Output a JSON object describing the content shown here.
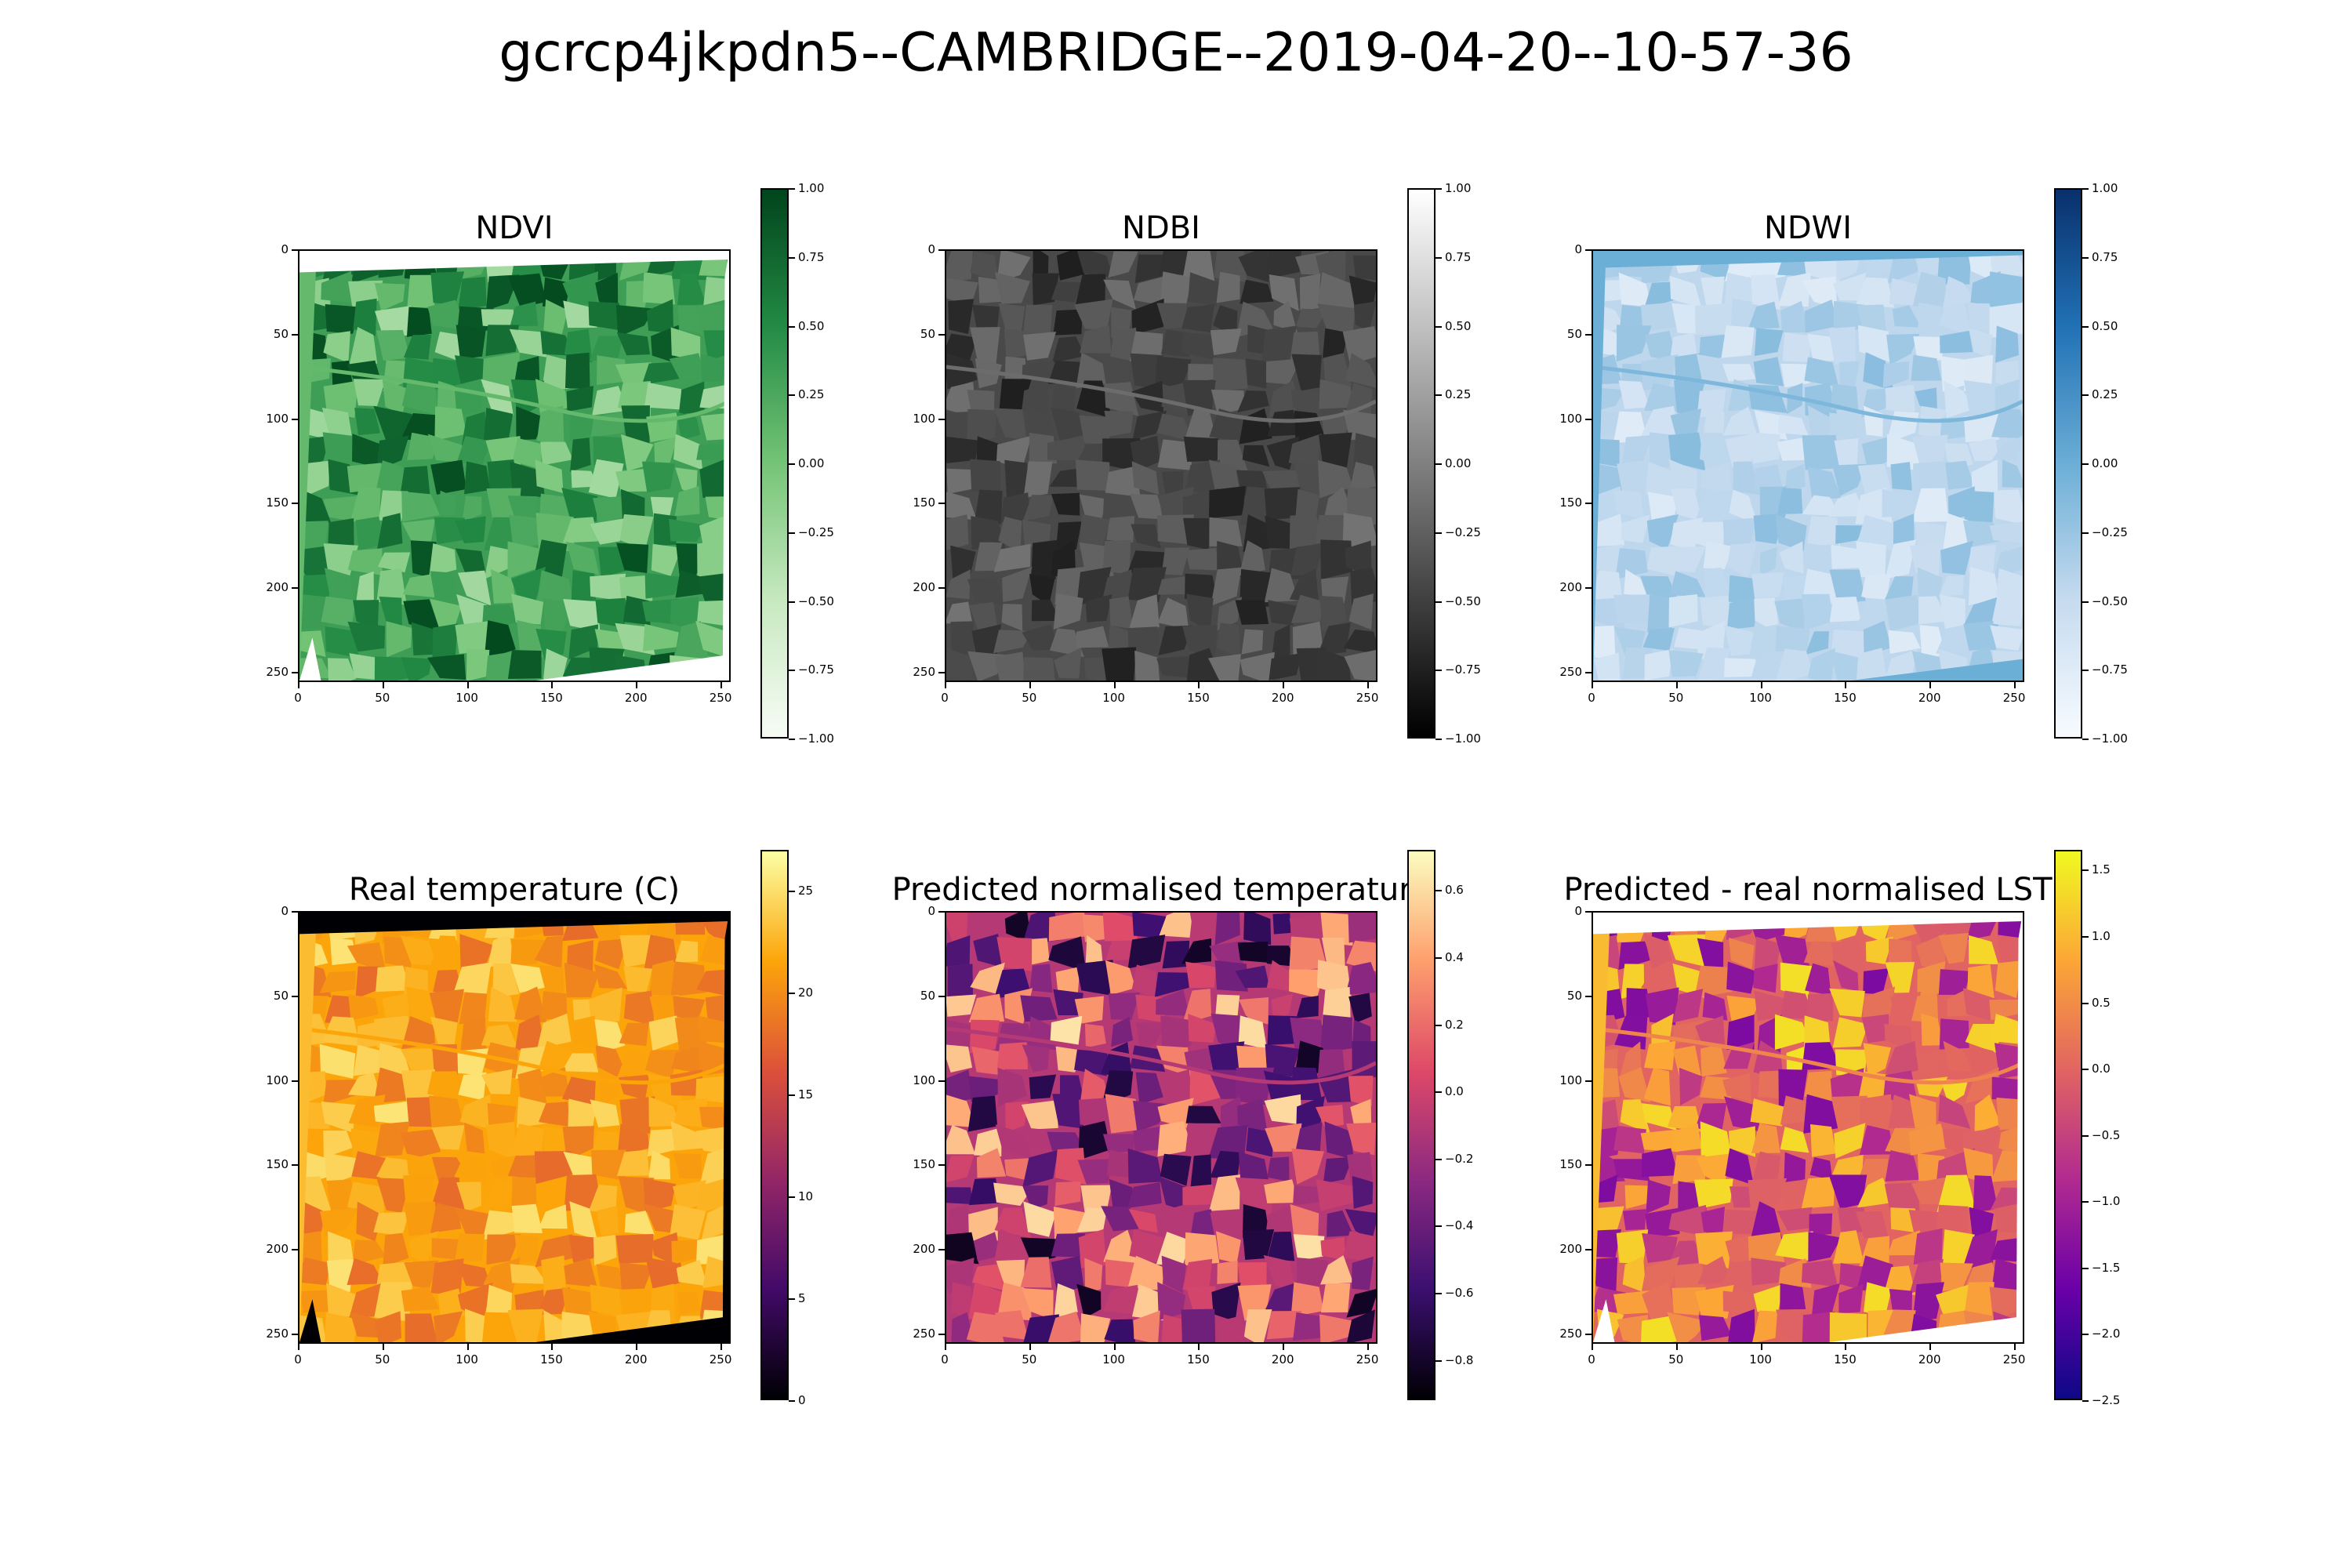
{
  "figure_title": "gcrcp4jkpdn5--CAMBRIDGE--2019-04-20--10-57-36",
  "chart_data": [
    {
      "type": "heatmap",
      "title": "NDVI",
      "colormap": "Greens",
      "colors": [
        "#f7fcf5",
        "#c7e9c0",
        "#74c476",
        "#238b45",
        "#00441b"
      ],
      "xlim": [
        0,
        256
      ],
      "ylim": [
        256,
        0
      ],
      "x_ticks": [
        "0",
        "50",
        "100",
        "150",
        "200",
        "250"
      ],
      "y_ticks": [
        "0",
        "50",
        "100",
        "150",
        "200",
        "250"
      ],
      "colorbar": {
        "range": [
          -1.0,
          1.0
        ],
        "ticks": [
          "1.00",
          "0.75",
          "0.50",
          "0.25",
          "0.00",
          "−0.25",
          "−0.50",
          "−0.75",
          "−1.00"
        ]
      }
    },
    {
      "type": "heatmap",
      "title": "NDBI",
      "colormap": "gray",
      "colors": [
        "#000000",
        "#404040",
        "#808080",
        "#c0c0c0",
        "#ffffff"
      ],
      "xlim": [
        0,
        256
      ],
      "ylim": [
        256,
        0
      ],
      "x_ticks": [
        "0",
        "50",
        "100",
        "150",
        "200",
        "250"
      ],
      "y_ticks": [
        "0",
        "50",
        "100",
        "150",
        "200",
        "250"
      ],
      "colorbar": {
        "range": [
          -1.0,
          1.0
        ],
        "ticks": [
          "1.00",
          "0.75",
          "0.50",
          "0.25",
          "0.00",
          "−0.25",
          "−0.50",
          "−0.75",
          "−1.00"
        ]
      }
    },
    {
      "type": "heatmap",
      "title": "NDWI",
      "colormap": "Blues",
      "colors": [
        "#f7fbff",
        "#c6dbef",
        "#6baed6",
        "#2171b5",
        "#08306b"
      ],
      "xlim": [
        0,
        256
      ],
      "ylim": [
        256,
        0
      ],
      "x_ticks": [
        "0",
        "50",
        "100",
        "150",
        "200",
        "250"
      ],
      "y_ticks": [
        "0",
        "50",
        "100",
        "150",
        "200",
        "250"
      ],
      "colorbar": {
        "range": [
          -1.0,
          1.0
        ],
        "ticks": [
          "1.00",
          "0.75",
          "0.50",
          "0.25",
          "0.00",
          "−0.25",
          "−0.50",
          "−0.75",
          "−1.00"
        ]
      }
    },
    {
      "type": "heatmap",
      "title": "Real temperature (C)",
      "colormap": "inferno",
      "colors": [
        "#000004",
        "#420a68",
        "#932667",
        "#dd513a",
        "#fca50a",
        "#fcffa4"
      ],
      "xlim": [
        0,
        256
      ],
      "ylim": [
        256,
        0
      ],
      "x_ticks": [
        "0",
        "50",
        "100",
        "150",
        "200",
        "250"
      ],
      "y_ticks": [
        "0",
        "50",
        "100",
        "150",
        "200",
        "250"
      ],
      "colorbar": {
        "range": [
          0,
          27
        ],
        "ticks": [
          "25",
          "20",
          "15",
          "10",
          "5",
          "0"
        ]
      }
    },
    {
      "type": "heatmap",
      "title": "Predicted normalised temperature",
      "colormap": "magma",
      "colors": [
        "#000004",
        "#3b0f70",
        "#8c2981",
        "#de4968",
        "#fe9f6d",
        "#fcfdbf"
      ],
      "xlim": [
        0,
        256
      ],
      "ylim": [
        256,
        0
      ],
      "x_ticks": [
        "0",
        "50",
        "100",
        "150",
        "200",
        "250"
      ],
      "y_ticks": [
        "0",
        "50",
        "100",
        "150",
        "200",
        "250"
      ],
      "colorbar": {
        "range": [
          -0.92,
          0.72
        ],
        "ticks": [
          "0.6",
          "0.4",
          "0.2",
          "0.0",
          "−0.2",
          "−0.4",
          "−0.6",
          "−0.8"
        ]
      }
    },
    {
      "type": "heatmap",
      "title": "Predicted - real normalised LST",
      "colormap": "plasma",
      "colors": [
        "#0d0887",
        "#6a00a8",
        "#b12a90",
        "#e16462",
        "#fca636",
        "#f0f921"
      ],
      "xlim": [
        0,
        256
      ],
      "ylim": [
        256,
        0
      ],
      "x_ticks": [
        "0",
        "50",
        "100",
        "150",
        "200",
        "250"
      ],
      "y_ticks": [
        "0",
        "50",
        "100",
        "150",
        "200",
        "250"
      ],
      "colorbar": {
        "range": [
          -2.5,
          1.65
        ],
        "ticks": [
          "1.5",
          "1.0",
          "0.5",
          "0.0",
          "−0.5",
          "−1.0",
          "−1.5",
          "−2.0",
          "−2.5"
        ]
      }
    }
  ]
}
